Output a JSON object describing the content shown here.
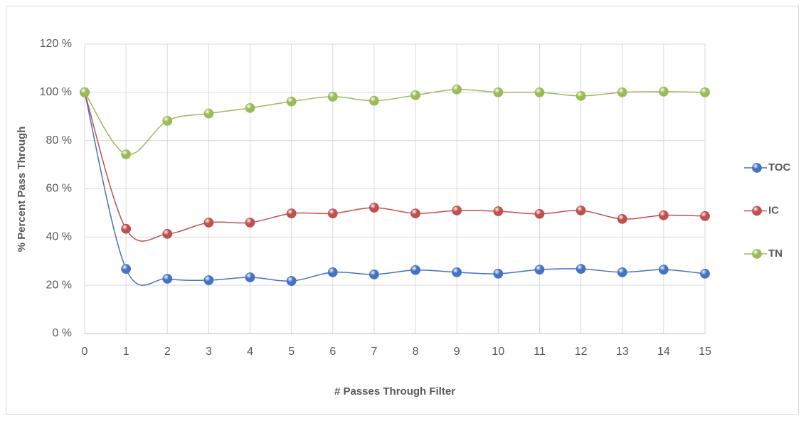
{
  "chart_data": {
    "type": "line",
    "smooth": true,
    "markers": true,
    "x_label": "# Passes Through Filter",
    "y_label": "% Percent Pass Through",
    "x": [
      0,
      1,
      2,
      3,
      4,
      5,
      6,
      7,
      8,
      9,
      10,
      11,
      12,
      13,
      14,
      15
    ],
    "xlim": [
      0,
      15
    ],
    "xticks": [
      0,
      1,
      2,
      3,
      4,
      5,
      6,
      7,
      8,
      9,
      10,
      11,
      12,
      13,
      14,
      15
    ],
    "ylim": [
      0,
      120
    ],
    "yticks": [
      {
        "value": 0,
        "label": "0 %"
      },
      {
        "value": 20,
        "label": "20 %"
      },
      {
        "value": 40,
        "label": "40 %"
      },
      {
        "value": 60,
        "label": "60 %"
      },
      {
        "value": 80,
        "label": "80 %"
      },
      {
        "value": 100,
        "label": "100 %"
      },
      {
        "value": 120,
        "label": "120 %"
      }
    ],
    "grid": true,
    "legend": "right",
    "series": [
      {
        "name": "TOC",
        "color": "#4472c4",
        "values": [
          100,
          26.8,
          22.7,
          22.1,
          23.3,
          21.8,
          25.4,
          24.5,
          26.3,
          25.4,
          24.8,
          26.5,
          26.8,
          25.4,
          26.5,
          24.8
        ]
      },
      {
        "name": "IC",
        "color": "#c0504d",
        "values": [
          100,
          43.4,
          41.3,
          46,
          46,
          49.8,
          49.8,
          52.2,
          49.8,
          51,
          50.7,
          49.6,
          51,
          47.5,
          49,
          48.7
        ]
      },
      {
        "name": "TN",
        "color": "#9bbb59",
        "values": [
          100,
          74.3,
          88.2,
          91.2,
          93.5,
          96.2,
          98.2,
          96.5,
          98.8,
          101.2,
          100,
          100,
          98.5,
          100,
          100.3,
          100
        ]
      }
    ]
  }
}
